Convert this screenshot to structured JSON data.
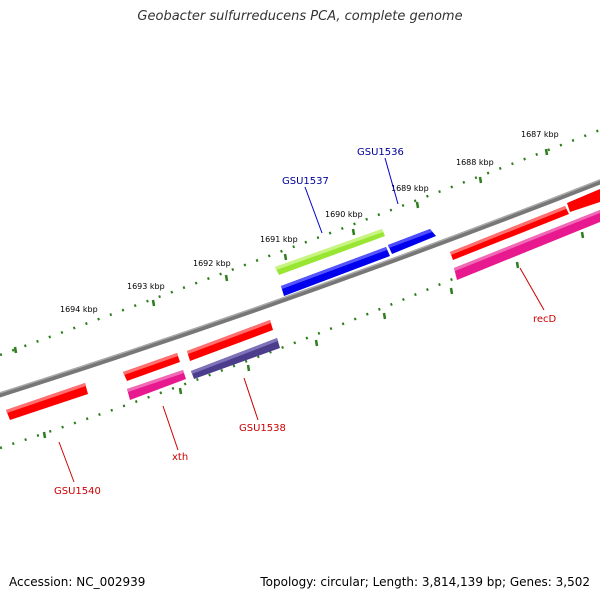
{
  "title": "Geobacter sulfurreducens PCA, complete genome",
  "footer": {
    "accession": "Accession: NC_002939",
    "summary": "Topology: circular; Length: 3,814,139 bp; Genes: 3,502"
  },
  "kbp_labels": [
    "1687 kbp",
    "1688 kbp",
    "1689 kbp",
    "1690 kbp",
    "1691 kbp",
    "1692 kbp",
    "1693 kbp",
    "1694 kbp"
  ],
  "genes": {
    "gsu1536": "GSU1536",
    "gsu1537": "GSU1537",
    "gsu1538": "GSU1538",
    "gsu1540": "GSU1540",
    "xth": "xth",
    "recd": "recD"
  },
  "colors": {
    "backbone": "#808080",
    "tick": "#2e7d1e",
    "red": "#ff0000",
    "pink": "#e8188f",
    "blue": "#0000ee",
    "green": "#99e632",
    "navy": "#4b3d8c",
    "label_blue": "#000099",
    "label_red": "#cc0000"
  }
}
